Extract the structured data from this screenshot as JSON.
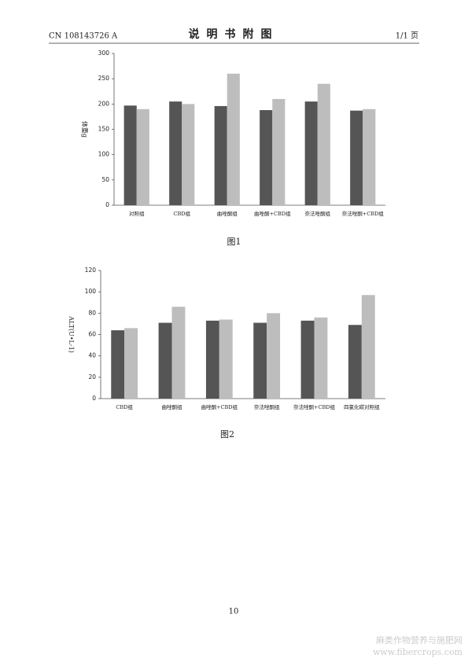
{
  "header": {
    "number": "CN 108143726 A",
    "title": "说明书附图",
    "page": "1/1 页"
  },
  "chart_data": [
    {
      "type": "bar",
      "y_label": "体重g",
      "caption": "图1",
      "categories": [
        "对照组",
        "CBD组",
        "曲唑酮组",
        "曲唑酮+CBD组",
        "奈法唑酮组",
        "奈法唑酮+CBD组"
      ],
      "series": [
        {
          "color": "#555555",
          "values": [
            197,
            205,
            196,
            188,
            205,
            187
          ]
        },
        {
          "color": "#bdbdbd",
          "values": [
            190,
            200,
            260,
            210,
            240,
            190
          ]
        }
      ],
      "ylim": [
        0,
        300
      ],
      "yticks": [
        0,
        50,
        100,
        150,
        200,
        250,
        300
      ]
    },
    {
      "type": "bar",
      "y_label": "ALT(U•L-1)",
      "caption": "图2",
      "categories": [
        "CBD组",
        "曲唑酮组",
        "曲唑酮+CBD组",
        "奈法唑酮组",
        "奈法唑酮+CBD组",
        "四氯化碳对照组"
      ],
      "series": [
        {
          "color": "#555555",
          "values": [
            64,
            71,
            73,
            71,
            73,
            69
          ]
        },
        {
          "color": "#bdbdbd",
          "values": [
            66,
            86,
            74,
            80,
            76,
            97
          ]
        }
      ],
      "ylim": [
        0,
        120
      ],
      "yticks": [
        0,
        20,
        40,
        60,
        80,
        100,
        120
      ]
    }
  ],
  "footer": {
    "page_number": "10",
    "watermark": "麻类作物营养与施肥网",
    "watermark_url": "www.fibercrops.com"
  }
}
